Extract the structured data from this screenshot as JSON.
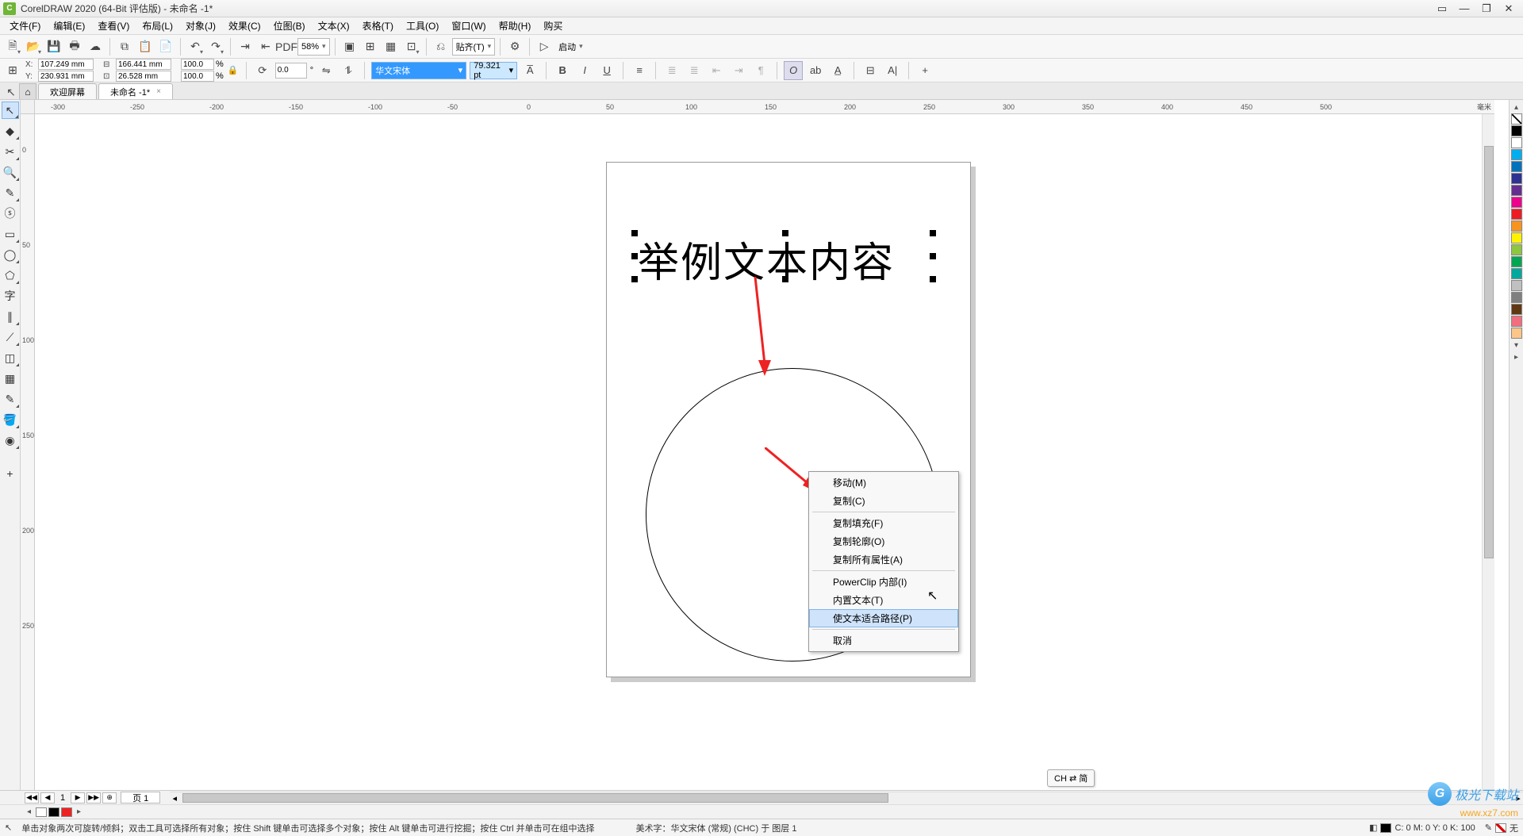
{
  "app": {
    "title": "CorelDRAW 2020 (64-Bit 评估版) - 未命名 -1*"
  },
  "menu": {
    "items": [
      "文件(F)",
      "编辑(E)",
      "查看(V)",
      "布局(L)",
      "对象(J)",
      "效果(C)",
      "位图(B)",
      "文本(X)",
      "表格(T)",
      "工具(O)",
      "窗口(W)",
      "帮助(H)",
      "购买"
    ]
  },
  "toolbar1": {
    "zoom": "58%",
    "align_label": "贴齐(T)",
    "launch_label": "启动"
  },
  "propbar": {
    "x_label": "X:",
    "x_value": "107.249 mm",
    "y_label": "Y:",
    "y_value": "230.931 mm",
    "w_value": "166.441 mm",
    "h_value": "26.528 mm",
    "sx": "100.0",
    "sy": "100.0",
    "pct": "%",
    "rot": "0.0",
    "deg": "°",
    "font_name": "华文宋体",
    "font_size": "79.321 pt"
  },
  "tabs": {
    "welcome": "欢迎屏幕",
    "doc": "未命名 -1*"
  },
  "ruler": {
    "unit": "毫米",
    "ticks_h": [
      "-300",
      "-250",
      "-200",
      "-150",
      "-100",
      "-50",
      "0",
      "50",
      "100",
      "150",
      "200",
      "250",
      "300",
      "350",
      "400",
      "450",
      "500"
    ],
    "ticks_v": [
      "0",
      "50",
      "100",
      "150",
      "200",
      "250"
    ]
  },
  "canvas": {
    "text": "举例文本内容",
    "page_bg": "#ffffff",
    "circle_stroke": "#000000"
  },
  "context_menu": {
    "items": [
      {
        "label": "移动(M)"
      },
      {
        "label": "复制(C)"
      },
      {
        "sep": true
      },
      {
        "label": "复制填充(F)"
      },
      {
        "label": "复制轮廓(O)"
      },
      {
        "label": "复制所有属性(A)"
      },
      {
        "sep": true
      },
      {
        "label": "PowerClip 内部(I)"
      },
      {
        "label": "内置文本(T)"
      },
      {
        "label": "使文本适合路径(P)",
        "hl": true
      },
      {
        "sep": true
      },
      {
        "label": "取消"
      }
    ]
  },
  "palette_colors": [
    "#000000",
    "#ffffff",
    "#00aeef",
    "#0072bc",
    "#2e3192",
    "#662d91",
    "#ec008c",
    "#ed1c24",
    "#f7941d",
    "#fff200",
    "#8dc63f",
    "#00a651",
    "#00a99d",
    "#c0c0c0",
    "#808080",
    "#603913",
    "#f26d7d",
    "#fdc689"
  ],
  "pagenav": {
    "page_count": "1",
    "page_label": "页 1"
  },
  "ime": {
    "label": "CH ⇄ 简"
  },
  "statusbar": {
    "hint": "单击对象两次可旋转/倾斜；双击工具可选择所有对象；按住 Shift 键单击可选择多个对象；按住 Alt 键单击可进行挖掘；按住 Ctrl 并单击可在组中选择",
    "art_text": "美术字：华文宋体 (常规) (CHC) 于 图层 1",
    "cmyk": "C: 0 M: 0 Y: 0 K: 100",
    "none_label": "无"
  },
  "watermark": {
    "brand": "极光下载站",
    "url": "www.xz7.com"
  }
}
